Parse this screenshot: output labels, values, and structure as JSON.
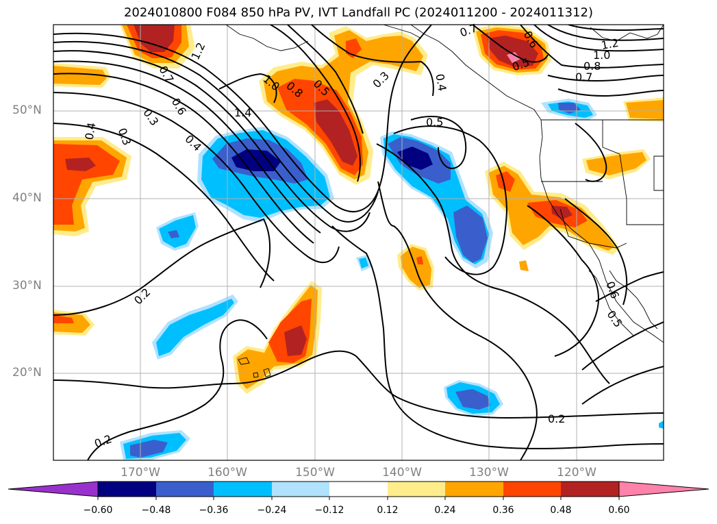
{
  "title": "2024010800 F084 850 hPa PV, IVT Landfall PC (2024011200 - 2024011312)",
  "lat_labels": [
    "50°N",
    "40°N",
    "30°N",
    "20°N"
  ],
  "lon_labels": [
    "170°W",
    "160°W",
    "150°W",
    "140°W",
    "130°W",
    "120°W"
  ],
  "contour_labels": [
    "0.7",
    "0.6",
    "1.2",
    "1.0",
    "0.8",
    "0.7",
    "0.5",
    "1.2",
    "0.7",
    "0.6",
    "0.3",
    "1.4",
    "1.0",
    "0.8",
    "0.5",
    "0.3",
    "0.4",
    "0.5",
    "0.4",
    "0.4",
    "0.3",
    "0.2",
    "0.2",
    "0.2",
    "0.6",
    "0.5"
  ],
  "colorbar": {
    "tick_labels": [
      "−0.60",
      "−0.48",
      "−0.36",
      "−0.24",
      "−0.12",
      "0.12",
      "0.24",
      "0.36",
      "0.48",
      "0.60"
    ],
    "colors": [
      "#9932cc",
      "#000080",
      "#3a5fcd",
      "#00bfff",
      "#b0e2ff",
      "#ffffff",
      "#ffec8b",
      "#ffa500",
      "#ff4500",
      "#b22222",
      "#ff82ab"
    ]
  }
}
